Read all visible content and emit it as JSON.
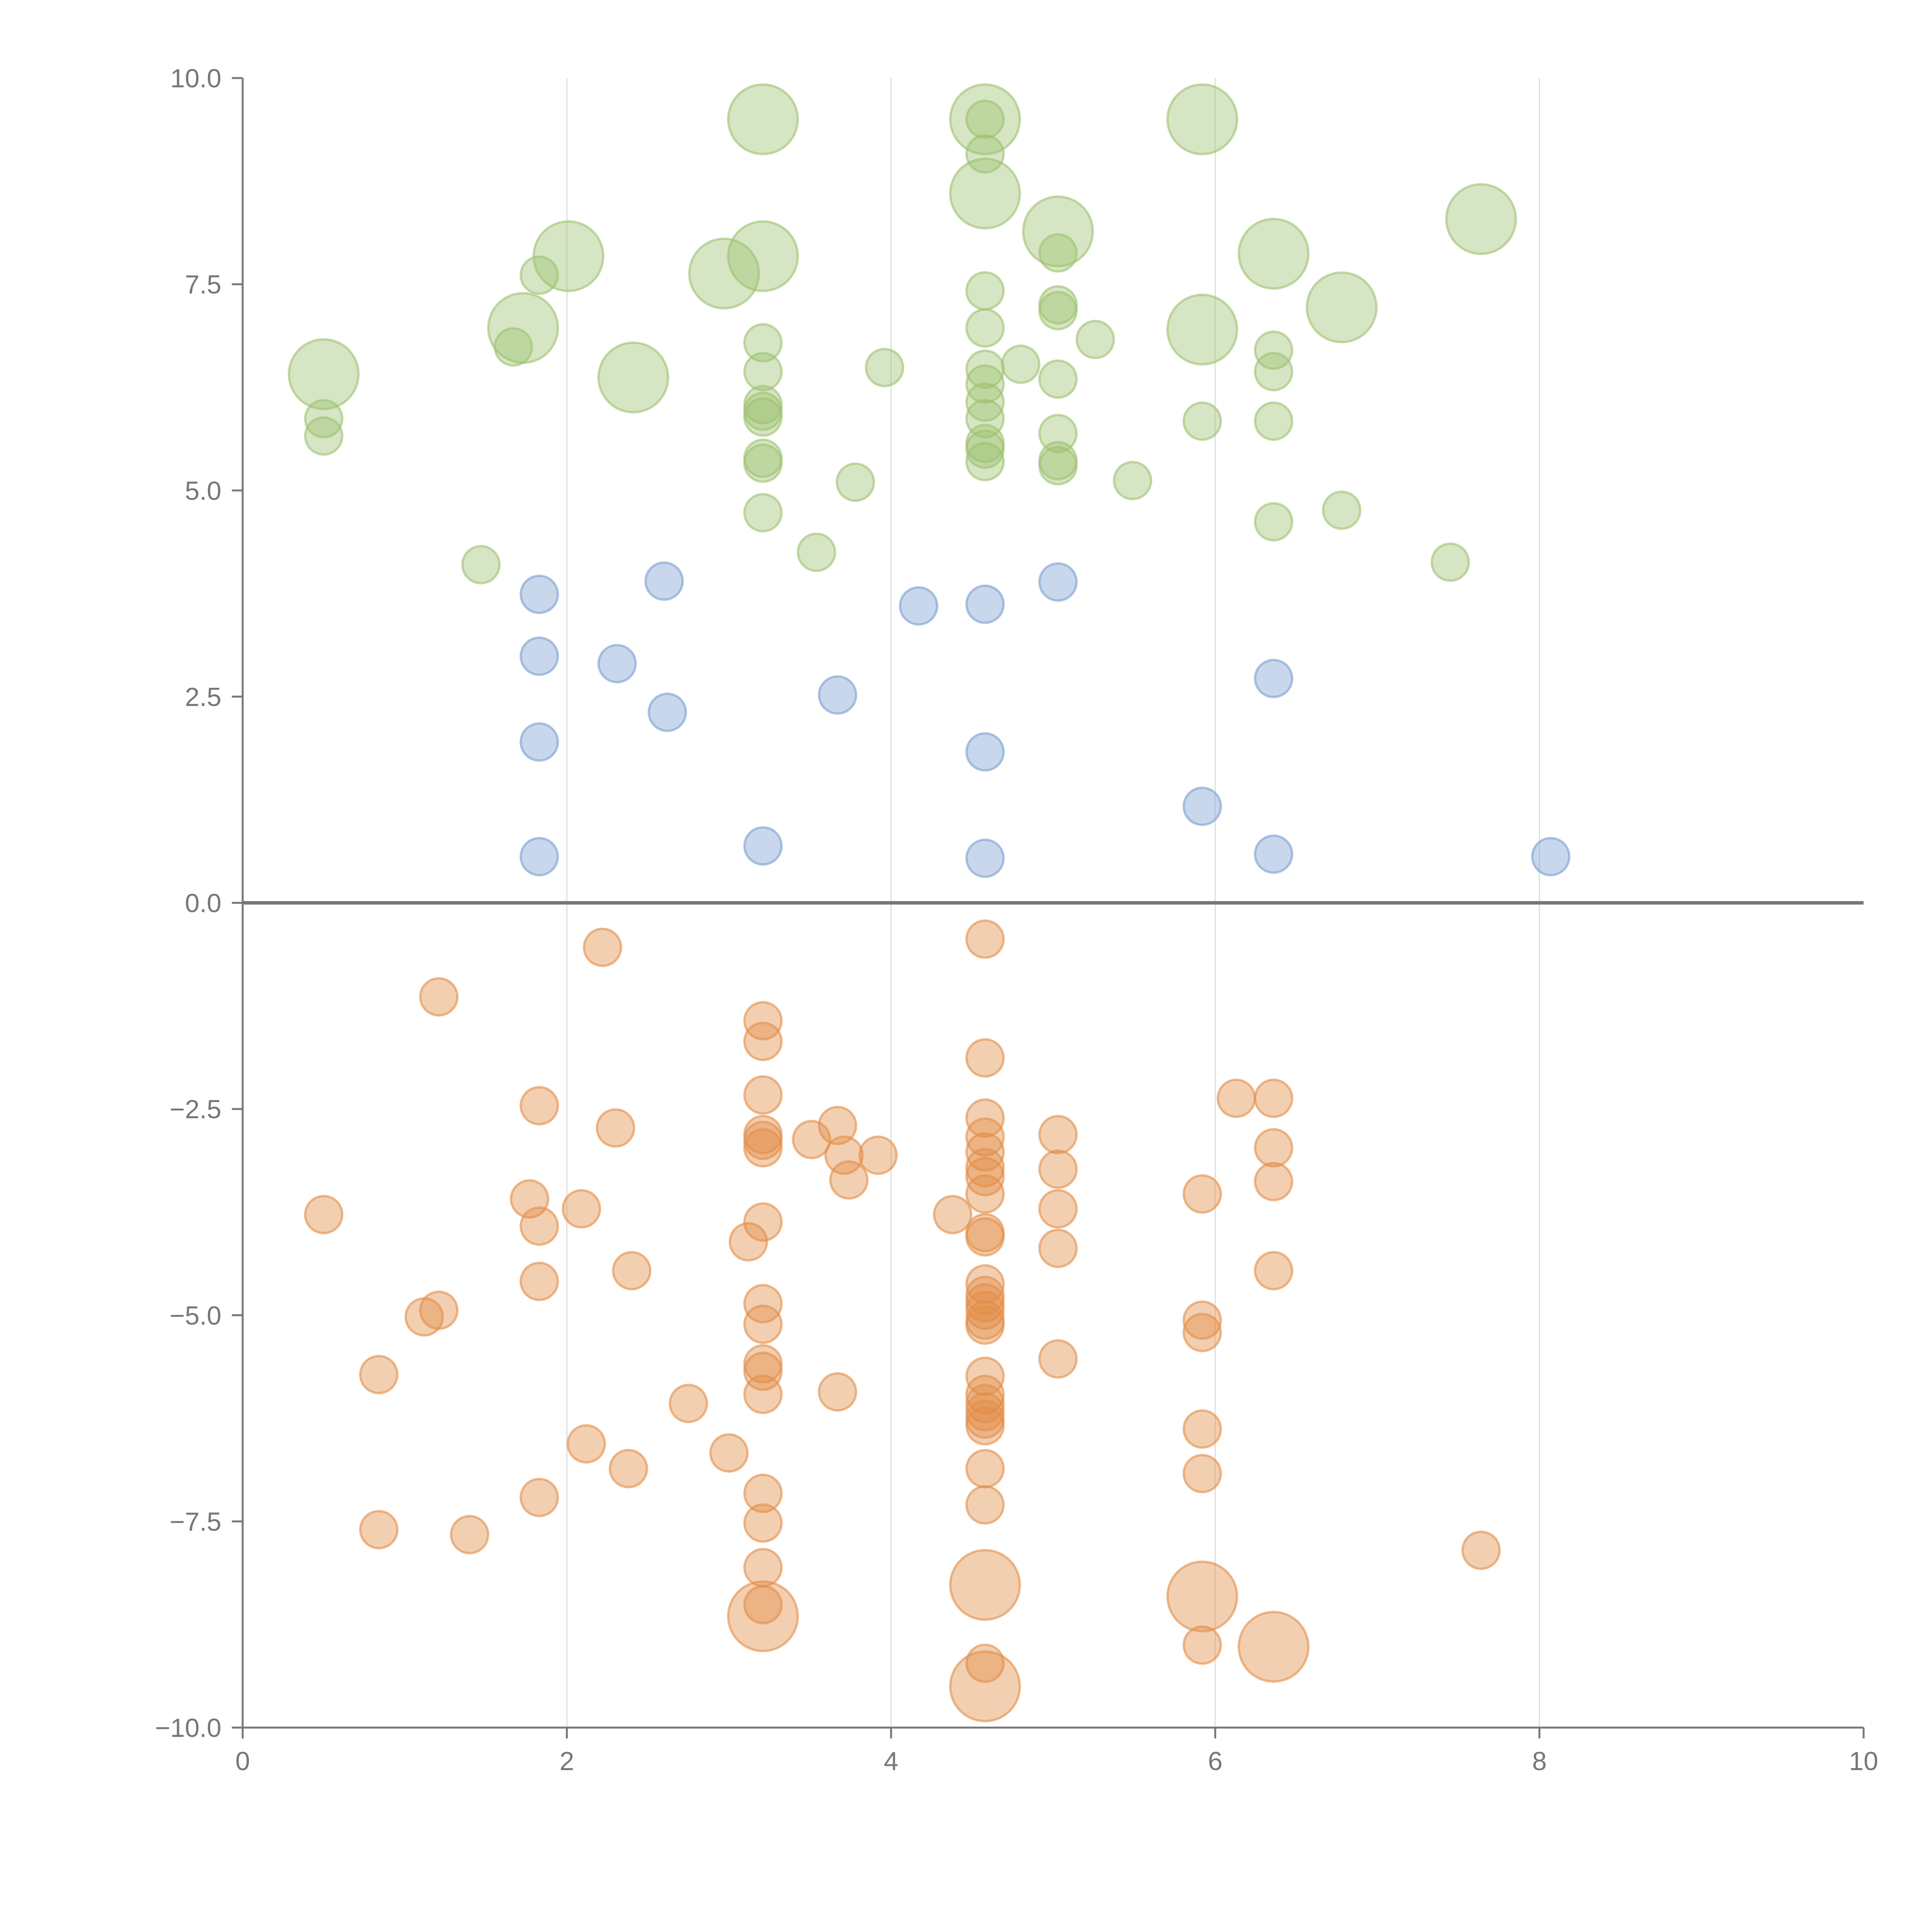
{
  "chart_data": {
    "type": "scatter",
    "title": "",
    "xlabel": "",
    "ylabel": "",
    "xlim": [
      0,
      10
    ],
    "ylim": [
      -10,
      10
    ],
    "x_ticks": [
      0,
      2,
      4,
      6,
      8,
      10
    ],
    "x_tick_labels": [
      "0",
      "2",
      "4",
      "6",
      "8",
      "10"
    ],
    "y_ticks": [
      10,
      7.5,
      5,
      2.5,
      0,
      -2.5,
      -5,
      -7.5,
      -10
    ],
    "y_tick_labels": [
      "10.0",
      "7.5",
      "5.0",
      "2.5",
      "0.0",
      "−2.5",
      "−5.0",
      "−7.5",
      "−10.0"
    ],
    "grid": "vertical",
    "reference_line_y": 0,
    "point_format": [
      "x",
      "y",
      "size"
    ],
    "series": [
      {
        "name": "green",
        "color": "#9dc16f",
        "points": [
          [
            3.21,
            9.5,
            3
          ],
          [
            4.58,
            9.5,
            3
          ],
          [
            5.92,
            9.5,
            3
          ],
          [
            4.58,
            8.6,
            3
          ],
          [
            5.03,
            8.14,
            3
          ],
          [
            7.64,
            8.29,
            3
          ],
          [
            2.01,
            7.84,
            3
          ],
          [
            3.21,
            7.84,
            3
          ],
          [
            6.36,
            7.87,
            3
          ],
          [
            2.97,
            7.63,
            3
          ],
          [
            6.78,
            7.22,
            3
          ],
          [
            1.73,
            6.97,
            3
          ],
          [
            5.92,
            6.95,
            3
          ],
          [
            0.5,
            6.41,
            3
          ],
          [
            2.41,
            6.37,
            3
          ],
          [
            4.58,
            9.5,
            1
          ],
          [
            4.58,
            9.08,
            1
          ],
          [
            5.03,
            7.88,
            1
          ],
          [
            1.83,
            7.61,
            1
          ],
          [
            4.58,
            7.42,
            1
          ],
          [
            5.03,
            7.25,
            1
          ],
          [
            5.03,
            7.18,
            1
          ],
          [
            3.21,
            6.79,
            1
          ],
          [
            4.58,
            6.97,
            1
          ],
          [
            1.67,
            6.74,
            1
          ],
          [
            5.26,
            6.83,
            1
          ],
          [
            6.36,
            6.7,
            1
          ],
          [
            3.96,
            6.49,
            1
          ],
          [
            4.8,
            6.53,
            1
          ],
          [
            3.21,
            6.44,
            1
          ],
          [
            4.58,
            6.47,
            1
          ],
          [
            6.36,
            6.44,
            1
          ],
          [
            4.58,
            6.29,
            1
          ],
          [
            5.03,
            6.35,
            1
          ],
          [
            3.21,
            6.04,
            1
          ],
          [
            3.21,
            5.96,
            1
          ],
          [
            3.21,
            5.89,
            1
          ],
          [
            4.58,
            6.07,
            1
          ],
          [
            4.58,
            5.87,
            1
          ],
          [
            0.5,
            5.87,
            1
          ],
          [
            5.92,
            5.84,
            1
          ],
          [
            6.36,
            5.84,
            1
          ],
          [
            0.5,
            5.66,
            1
          ],
          [
            5.03,
            5.69,
            1
          ],
          [
            4.58,
            5.57,
            1
          ],
          [
            4.58,
            5.5,
            1
          ],
          [
            4.58,
            5.35,
            1
          ],
          [
            3.21,
            5.39,
            1
          ],
          [
            3.21,
            5.33,
            1
          ],
          [
            5.03,
            5.36,
            1
          ],
          [
            5.03,
            5.3,
            1
          ],
          [
            3.78,
            5.1,
            1
          ],
          [
            5.49,
            5.12,
            1
          ],
          [
            3.21,
            4.73,
            1
          ],
          [
            6.36,
            4.62,
            1
          ],
          [
            6.78,
            4.76,
            1
          ],
          [
            3.54,
            4.25,
            1
          ],
          [
            1.47,
            4.1,
            1
          ],
          [
            7.45,
            4.13,
            1
          ]
        ]
      },
      {
        "name": "blue",
        "color": "#7c9fd1",
        "points": [
          [
            1.83,
            3.74,
            1
          ],
          [
            2.6,
            3.9,
            1
          ],
          [
            4.17,
            3.6,
            1
          ],
          [
            4.58,
            3.62,
            1
          ],
          [
            5.03,
            3.89,
            1
          ],
          [
            1.83,
            2.99,
            1
          ],
          [
            2.31,
            2.9,
            1
          ],
          [
            3.67,
            2.52,
            1
          ],
          [
            2.62,
            2.31,
            1
          ],
          [
            6.36,
            2.72,
            1
          ],
          [
            1.83,
            1.95,
            1
          ],
          [
            4.58,
            1.83,
            1
          ],
          [
            5.92,
            1.17,
            1
          ],
          [
            1.83,
            0.56,
            1
          ],
          [
            3.21,
            0.69,
            1
          ],
          [
            4.58,
            0.54,
            1
          ],
          [
            6.36,
            0.59,
            1
          ],
          [
            8.07,
            0.56,
            1
          ]
        ]
      },
      {
        "name": "orange",
        "color": "#e38d47",
        "points": [
          [
            2.22,
            -0.54,
            1
          ],
          [
            4.58,
            -0.44,
            1
          ],
          [
            1.21,
            -1.14,
            1
          ],
          [
            3.21,
            -1.43,
            1
          ],
          [
            3.21,
            -1.68,
            1
          ],
          [
            4.58,
            -1.88,
            1
          ],
          [
            3.21,
            -2.33,
            1
          ],
          [
            1.83,
            -2.46,
            1
          ],
          [
            6.13,
            -2.37,
            1
          ],
          [
            6.36,
            -2.37,
            1
          ],
          [
            2.3,
            -2.73,
            1
          ],
          [
            3.67,
            -2.7,
            1
          ],
          [
            4.58,
            -2.61,
            1
          ],
          [
            3.21,
            -2.81,
            1
          ],
          [
            3.21,
            -2.88,
            1
          ],
          [
            3.21,
            -2.97,
            1
          ],
          [
            3.51,
            -2.87,
            1
          ],
          [
            5.03,
            -2.81,
            1
          ],
          [
            4.58,
            -2.84,
            1
          ],
          [
            4.58,
            -3.02,
            1
          ],
          [
            3.71,
            -3.06,
            1
          ],
          [
            3.92,
            -3.06,
            1
          ],
          [
            6.36,
            -2.97,
            1
          ],
          [
            4.58,
            -3.21,
            1
          ],
          [
            4.58,
            -3.32,
            1
          ],
          [
            5.03,
            -3.23,
            1
          ],
          [
            3.74,
            -3.36,
            1
          ],
          [
            6.36,
            -3.38,
            1
          ],
          [
            4.58,
            -3.53,
            1
          ],
          [
            5.92,
            -3.53,
            1
          ],
          [
            1.77,
            -3.59,
            1
          ],
          [
            2.09,
            -3.71,
            1
          ],
          [
            5.03,
            -3.71,
            1
          ],
          [
            0.5,
            -3.78,
            1
          ],
          [
            4.38,
            -3.78,
            1
          ],
          [
            1.83,
            -3.92,
            1
          ],
          [
            3.21,
            -3.87,
            1
          ],
          [
            4.58,
            -4.0,
            1
          ],
          [
            4.58,
            -4.05,
            1
          ],
          [
            3.12,
            -4.11,
            1
          ],
          [
            5.03,
            -4.19,
            1
          ],
          [
            2.4,
            -4.46,
            1
          ],
          [
            6.36,
            -4.46,
            1
          ],
          [
            1.83,
            -4.59,
            1
          ],
          [
            4.58,
            -4.62,
            1
          ],
          [
            4.58,
            -4.76,
            1
          ],
          [
            4.58,
            -4.85,
            1
          ],
          [
            4.58,
            -4.94,
            1
          ],
          [
            4.58,
            -5.06,
            1
          ],
          [
            4.58,
            -5.12,
            1
          ],
          [
            3.21,
            -4.86,
            1
          ],
          [
            1.12,
            -5.02,
            1
          ],
          [
            1.21,
            -4.94,
            1
          ],
          [
            5.92,
            -5.06,
            1
          ],
          [
            5.92,
            -5.21,
            1
          ],
          [
            3.21,
            -5.11,
            1
          ],
          [
            5.03,
            -5.53,
            1
          ],
          [
            0.84,
            -5.72,
            1
          ],
          [
            3.21,
            -5.59,
            1
          ],
          [
            3.21,
            -5.68,
            1
          ],
          [
            3.21,
            -5.96,
            1
          ],
          [
            4.58,
            -5.74,
            1
          ],
          [
            3.67,
            -5.93,
            1
          ],
          [
            4.58,
            -5.96,
            1
          ],
          [
            4.58,
            -6.07,
            1
          ],
          [
            4.58,
            -6.17,
            1
          ],
          [
            4.58,
            -6.26,
            1
          ],
          [
            4.58,
            -6.34,
            1
          ],
          [
            2.75,
            -6.07,
            1
          ],
          [
            5.92,
            -6.38,
            1
          ],
          [
            2.12,
            -6.56,
            1
          ],
          [
            3.0,
            -6.67,
            1
          ],
          [
            2.38,
            -6.86,
            1
          ],
          [
            4.58,
            -6.86,
            1
          ],
          [
            5.92,
            -6.92,
            1
          ],
          [
            3.21,
            -7.16,
            1
          ],
          [
            1.83,
            -7.21,
            1
          ],
          [
            4.58,
            -7.3,
            1
          ],
          [
            3.21,
            -7.52,
            1
          ],
          [
            0.84,
            -7.6,
            1
          ],
          [
            1.4,
            -7.66,
            1
          ],
          [
            7.64,
            -7.85,
            1
          ],
          [
            3.21,
            -8.06,
            1
          ],
          [
            3.21,
            -8.51,
            1
          ],
          [
            5.92,
            -9.0,
            1
          ],
          [
            4.58,
            -9.22,
            1
          ],
          [
            4.58,
            -8.27,
            3
          ],
          [
            5.92,
            -8.41,
            3
          ],
          [
            3.21,
            -8.65,
            3
          ],
          [
            6.36,
            -9.02,
            3
          ],
          [
            4.58,
            -9.5,
            3
          ]
        ]
      }
    ]
  }
}
